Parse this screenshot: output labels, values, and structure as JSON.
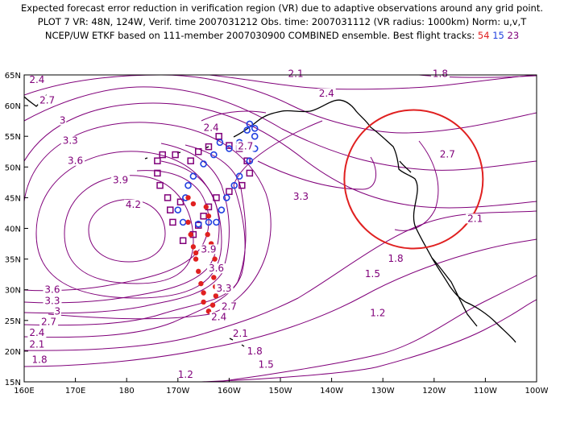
{
  "header": {
    "line1": "Expected forecast error reduction in verification region (VR) due to adaptive observations around any grid point.",
    "line2": "PLOT 7 VR: 48N, 124W, Verif. time 2007031212 Obs. time: 2007031112 (VR radius: 1000km) Norm: u,v,T",
    "line3_prefix": "NCEP/UW ETKF based on 111-member 2007030900 COMBINED ensemble.  Best flight tracks:",
    "track1": "54",
    "track2": "15",
    "track3": "23"
  },
  "map": {
    "lon_range": [
      160,
      260
    ],
    "lat_range": [
      15,
      65
    ],
    "lon_ticks": [
      "160E",
      "170E",
      "180",
      "170W",
      "160W",
      "150W",
      "140W",
      "130W",
      "120W",
      "110W",
      "100W"
    ],
    "lat_ticks": [
      "15N",
      "20N",
      "25N",
      "30N",
      "35N",
      "40N",
      "45N",
      "50N",
      "55N",
      "60N",
      "65N"
    ],
    "contour_color": "#80007a",
    "contour_labels": [
      {
        "text": "2.4",
        "lon": 162.5,
        "lat": 63.8
      },
      {
        "text": "2.7",
        "lon": 164.5,
        "lat": 60.5
      },
      {
        "text": "3",
        "lon": 167.5,
        "lat": 57.2
      },
      {
        "text": "3.3",
        "lon": 169,
        "lat": 53.9
      },
      {
        "text": "3.6",
        "lon": 170,
        "lat": 50.6
      },
      {
        "text": "3.9",
        "lon": 178.8,
        "lat": 47.5
      },
      {
        "text": "4.2",
        "lon": 181.3,
        "lat": 43.5
      },
      {
        "text": "2.4",
        "lon": 196.5,
        "lat": 56
      },
      {
        "text": "2.7",
        "lon": 203.2,
        "lat": 53
      },
      {
        "text": "3.3",
        "lon": 214,
        "lat": 44.8
      },
      {
        "text": "2.1",
        "lon": 213,
        "lat": 64.8
      },
      {
        "text": "2.4",
        "lon": 219,
        "lat": 61.6
      },
      {
        "text": "1.8",
        "lon": 241.2,
        "lat": 64.8
      },
      {
        "text": "2.7",
        "lon": 242.6,
        "lat": 51.7
      },
      {
        "text": "2.1",
        "lon": 248,
        "lat": 41.2
      },
      {
        "text": "1.8",
        "lon": 232.5,
        "lat": 34.7
      },
      {
        "text": "1.5",
        "lon": 228,
        "lat": 32.2
      },
      {
        "text": "1.2",
        "lon": 229,
        "lat": 25.8
      },
      {
        "text": "3.9",
        "lon": 196,
        "lat": 36.2
      },
      {
        "text": "3.6",
        "lon": 197.5,
        "lat": 33.1
      },
      {
        "text": "3.3",
        "lon": 199,
        "lat": 29.8
      },
      {
        "text": "2.7",
        "lon": 200,
        "lat": 26.9
      },
      {
        "text": "2.4",
        "lon": 198,
        "lat": 25.2
      },
      {
        "text": "2.1",
        "lon": 202.2,
        "lat": 22.5
      },
      {
        "text": "1.8",
        "lon": 205,
        "lat": 19.6
      },
      {
        "text": "1.5",
        "lon": 207.2,
        "lat": 17.4
      },
      {
        "text": "3.6",
        "lon": 165.5,
        "lat": 29.6
      },
      {
        "text": "3.3",
        "lon": 165.5,
        "lat": 27.8
      },
      {
        "text": "3",
        "lon": 166.5,
        "lat": 26.1
      },
      {
        "text": "2.7",
        "lon": 164.8,
        "lat": 24.4
      },
      {
        "text": "2.4",
        "lon": 162.5,
        "lat": 22.6
      },
      {
        "text": "2.1",
        "lon": 162.5,
        "lat": 20.7
      },
      {
        "text": "1.8",
        "lon": 163,
        "lat": 18.2
      },
      {
        "text": "1.2",
        "lon": 191.5,
        "lat": 15.8
      }
    ],
    "vr_circle": {
      "center_lon": 236,
      "center_lat": 48,
      "color": "#e02020"
    },
    "tracks": {
      "red": {
        "color": "#e02020",
        "shape": "dot",
        "points": [
          [
            192,
            45
          ],
          [
            193,
            44
          ],
          [
            192,
            41
          ],
          [
            192.5,
            39
          ],
          [
            193,
            37
          ],
          [
            193.5,
            36
          ],
          [
            193.5,
            35
          ],
          [
            194,
            33
          ],
          [
            194.5,
            31
          ],
          [
            195,
            29.5
          ],
          [
            195,
            28
          ],
          [
            196,
            26.5
          ],
          [
            197,
            26
          ],
          [
            195.5,
            43.5
          ],
          [
            196,
            42
          ],
          [
            195.8,
            39
          ],
          [
            196.5,
            37.5
          ],
          [
            197.2,
            35
          ],
          [
            197.5,
            33.5
          ],
          [
            197,
            32
          ],
          [
            197.3,
            30.5
          ],
          [
            197.4,
            29
          ],
          [
            196.8,
            27.5
          ],
          [
            196,
            26.5
          ]
        ]
      },
      "blue": {
        "color": "#2040e0",
        "shape": "circle",
        "points": [
          [
            204,
            57
          ],
          [
            205,
            55
          ],
          [
            205,
            53
          ],
          [
            204,
            51
          ],
          [
            202,
            48.5
          ],
          [
            201,
            47
          ],
          [
            199.5,
            45
          ],
          [
            198.5,
            43
          ],
          [
            197.5,
            41
          ],
          [
            196,
            41
          ],
          [
            194,
            40.7
          ],
          [
            191,
            41
          ],
          [
            190,
            43
          ],
          [
            191.5,
            45
          ],
          [
            192,
            47
          ],
          [
            193,
            48.5
          ],
          [
            195,
            50.5
          ],
          [
            197,
            52
          ],
          [
            198.2,
            54
          ],
          [
            200,
            53
          ],
          [
            202,
            54
          ],
          [
            203.5,
            56
          ],
          [
            205,
            56.3
          ]
        ]
      },
      "purple": {
        "color": "#80007a",
        "shape": "square",
        "points": [
          [
            198,
            55
          ],
          [
            200,
            53.5
          ],
          [
            202,
            53
          ],
          [
            203.5,
            51
          ],
          [
            204,
            49
          ],
          [
            202.5,
            47
          ],
          [
            200,
            46
          ],
          [
            197.5,
            45
          ],
          [
            196,
            43.5
          ],
          [
            195,
            42
          ],
          [
            194,
            40.5
          ],
          [
            193,
            39
          ],
          [
            191,
            38
          ],
          [
            189,
            41
          ],
          [
            188.5,
            43
          ],
          [
            188,
            45
          ],
          [
            186.5,
            47
          ],
          [
            186,
            49
          ],
          [
            186,
            51
          ],
          [
            187,
            52
          ],
          [
            189.5,
            52
          ],
          [
            192.5,
            51
          ],
          [
            194,
            52.5
          ],
          [
            196,
            53.3
          ],
          [
            190.5,
            44.3
          ]
        ]
      }
    }
  }
}
